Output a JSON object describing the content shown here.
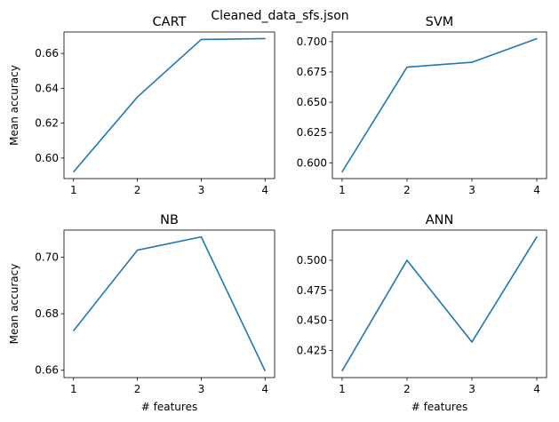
{
  "suptitle": "Cleaned_data_sfs.json",
  "chart_data": [
    {
      "type": "line",
      "title": "CART",
      "xlabel": "",
      "ylabel": "Mean accuracy",
      "x": [
        1,
        2,
        3,
        4
      ],
      "series": [
        {
          "values": [
            0.592,
            0.635,
            0.668,
            0.6685
          ],
          "color": "#1f77b4"
        }
      ],
      "xlim": [
        0.85,
        4.15
      ],
      "ylim": [
        0.5882,
        0.6723
      ],
      "xticks": [
        "1",
        "2",
        "3",
        "4"
      ],
      "yticks": [
        0.6,
        0.62,
        0.64,
        0.66
      ],
      "ytick_labels": [
        "0.60",
        "0.62",
        "0.64",
        "0.66"
      ],
      "grid": false
    },
    {
      "type": "line",
      "title": "SVM",
      "xlabel": "",
      "ylabel": "",
      "x": [
        1,
        2,
        3,
        4
      ],
      "series": [
        {
          "values": [
            0.5925,
            0.679,
            0.683,
            0.7025
          ],
          "color": "#1f77b4"
        }
      ],
      "xlim": [
        0.85,
        4.15
      ],
      "ylim": [
        0.587,
        0.708
      ],
      "xticks": [
        "1",
        "2",
        "3",
        "4"
      ],
      "yticks": [
        0.6,
        0.625,
        0.65,
        0.675,
        0.7
      ],
      "ytick_labels": [
        "0.600",
        "0.625",
        "0.650",
        "0.675",
        "0.700"
      ],
      "grid": false
    },
    {
      "type": "line",
      "title": "NB",
      "xlabel": "# features",
      "ylabel": "Mean accuracy",
      "x": [
        1,
        2,
        3,
        4
      ],
      "series": [
        {
          "values": [
            0.674,
            0.7025,
            0.7072,
            0.6598
          ],
          "color": "#1f77b4"
        }
      ],
      "xlim": [
        0.85,
        4.15
      ],
      "ylim": [
        0.6574,
        0.7096
      ],
      "xticks": [
        "1",
        "2",
        "3",
        "4"
      ],
      "yticks": [
        0.66,
        0.68,
        0.7
      ],
      "ytick_labels": [
        "0.66",
        "0.68",
        "0.70"
      ],
      "grid": false
    },
    {
      "type": "line",
      "title": "ANN",
      "xlabel": "# features",
      "ylabel": "",
      "x": [
        1,
        2,
        3,
        4
      ],
      "series": [
        {
          "values": [
            0.408,
            0.5,
            0.432,
            0.5195
          ],
          "color": "#1f77b4"
        }
      ],
      "xlim": [
        0.85,
        4.15
      ],
      "ylim": [
        0.4024,
        0.5251
      ],
      "xticks": [
        "1",
        "2",
        "3",
        "4"
      ],
      "yticks": [
        0.425,
        0.45,
        0.475,
        0.5
      ],
      "ytick_labels": [
        "0.425",
        "0.450",
        "0.475",
        "0.500"
      ],
      "grid": false
    }
  ]
}
